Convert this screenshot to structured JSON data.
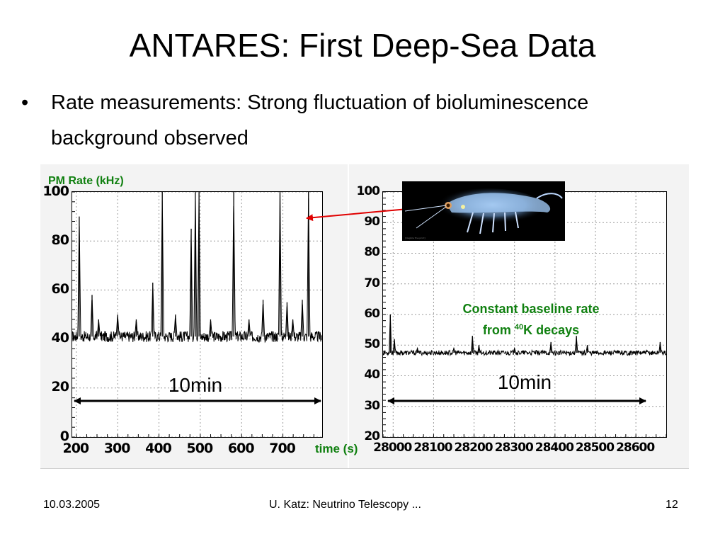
{
  "slide": {
    "title": "ANTARES: First Deep-Sea Data",
    "bullet_marker": "•",
    "bullet_line1": "Rate measurements: Strong fluctuation of bioluminescence",
    "bullet_line2": "background observed"
  },
  "labels": {
    "y_axis": "PM Rate (kHz)",
    "x_axis": "time (s)",
    "left_span": "10min",
    "right_span": "10min",
    "note_line1": "Constant baseline rate",
    "note_from": "from ",
    "note_sup": "40",
    "note_tail": "K decays"
  },
  "footer": {
    "date": "10.03.2005",
    "center": "U. Katz: Neutrino Telescopy ...",
    "page": "12"
  },
  "colors": {
    "label_green": "#108010",
    "arrow_red": "#e00000",
    "grid": "#9a9a9a"
  },
  "image": {
    "subject": "bioluminescent shrimp photo",
    "caption": "[illegible fine print]"
  },
  "chart_data": [
    {
      "type": "line",
      "title": "",
      "xlabel": "time (s)",
      "ylabel": "PM Rate (kHz)",
      "xlim": [
        190,
        795
      ],
      "ylim": [
        0,
        100
      ],
      "xticks": [
        200,
        300,
        400,
        500,
        600,
        700
      ],
      "yticks": [
        0,
        20,
        40,
        60,
        80,
        100
      ],
      "grid": true,
      "baseline": 41,
      "series": [
        {
          "peaks": [
            {
              "x": 207,
              "y": 90
            },
            {
              "x": 238,
              "y": 58
            },
            {
              "x": 254,
              "y": 48
            },
            {
              "x": 300,
              "y": 50
            },
            {
              "x": 345,
              "y": 48
            },
            {
              "x": 385,
              "y": 63
            },
            {
              "x": 408,
              "y": 100
            },
            {
              "x": 440,
              "y": 50
            },
            {
              "x": 478,
              "y": 85
            },
            {
              "x": 488,
              "y": 100
            },
            {
              "x": 497,
              "y": 100
            },
            {
              "x": 525,
              "y": 48
            },
            {
              "x": 581,
              "y": 100
            },
            {
              "x": 618,
              "y": 48
            },
            {
              "x": 652,
              "y": 56
            },
            {
              "x": 693,
              "y": 100
            },
            {
              "x": 710,
              "y": 55
            },
            {
              "x": 724,
              "y": 48
            },
            {
              "x": 747,
              "y": 56
            },
            {
              "x": 762,
              "y": 100
            }
          ]
        }
      ]
    },
    {
      "type": "line",
      "title": "",
      "xlabel": "time (s)",
      "ylabel": "",
      "xlim": [
        27975,
        28675
      ],
      "ylim": [
        20,
        100
      ],
      "xticks": [
        28000,
        28100,
        28200,
        28300,
        28400,
        28500,
        28600
      ],
      "yticks": [
        20,
        30,
        40,
        50,
        60,
        70,
        80,
        90,
        100
      ],
      "grid": true,
      "baseline": 47.5,
      "series": [
        {
          "peaks": [
            {
              "x": 27993,
              "y": 60
            },
            {
              "x": 28003,
              "y": 52
            },
            {
              "x": 28060,
              "y": 49
            },
            {
              "x": 28150,
              "y": 49
            },
            {
              "x": 28196,
              "y": 53
            },
            {
              "x": 28212,
              "y": 50
            },
            {
              "x": 28300,
              "y": 49
            },
            {
              "x": 28390,
              "y": 51
            },
            {
              "x": 28453,
              "y": 53
            },
            {
              "x": 28480,
              "y": 50
            },
            {
              "x": 28660,
              "y": 51
            }
          ]
        }
      ]
    }
  ]
}
